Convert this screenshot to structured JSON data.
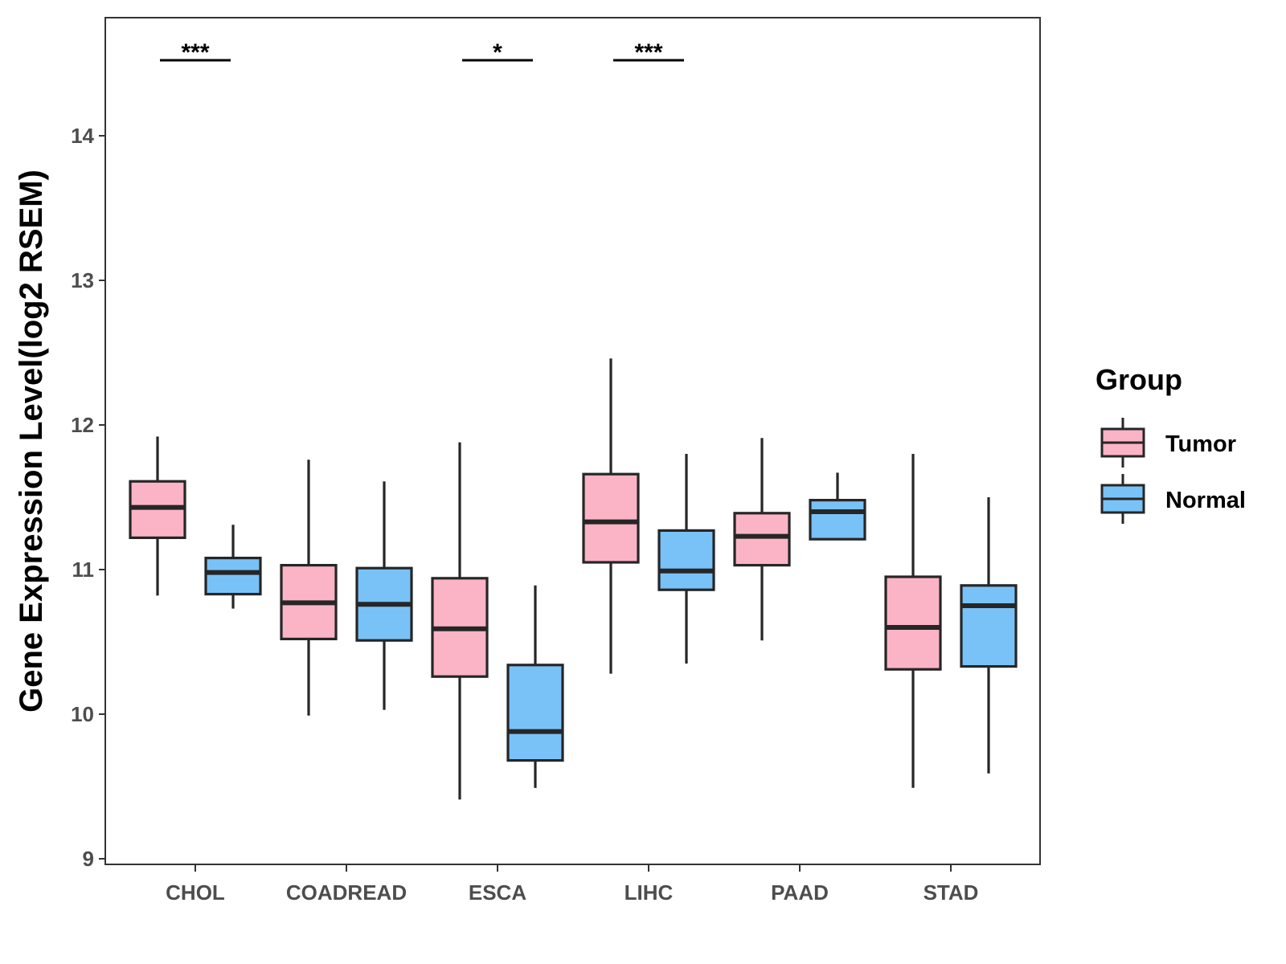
{
  "chart_data": {
    "type": "boxplot",
    "title": "",
    "xlabel": "",
    "ylabel": "Gene Expression Level(log2 RSEM)",
    "ylim": [
      8.95,
      14.8
    ],
    "yticks": [
      9,
      10,
      11,
      12,
      13,
      14
    ],
    "categories": [
      "CHOL",
      "COADREAD",
      "ESCA",
      "LIHC",
      "PAAD",
      "STAD"
    ],
    "legend": {
      "title": "Group",
      "position": "right",
      "entries": [
        {
          "name": "Tumor",
          "color": "#FBB4C6"
        },
        {
          "name": "Normal",
          "color": "#79C2F7"
        }
      ]
    },
    "series": [
      {
        "name": "Tumor",
        "color": "#FBB4C6",
        "boxes": [
          {
            "min": 10.82,
            "q1": 11.22,
            "median": 11.43,
            "q3": 11.61,
            "max": 11.92
          },
          {
            "min": 9.99,
            "q1": 10.52,
            "median": 10.77,
            "q3": 11.03,
            "max": 11.76
          },
          {
            "min": 9.41,
            "q1": 10.26,
            "median": 10.59,
            "q3": 10.94,
            "max": 11.88
          },
          {
            "min": 10.28,
            "q1": 11.05,
            "median": 11.33,
            "q3": 11.66,
            "max": 12.46
          },
          {
            "min": 10.51,
            "q1": 11.03,
            "median": 11.23,
            "q3": 11.39,
            "max": 11.91
          },
          {
            "min": 9.49,
            "q1": 10.31,
            "median": 10.6,
            "q3": 10.95,
            "max": 11.8
          }
        ]
      },
      {
        "name": "Normal",
        "color": "#79C2F7",
        "boxes": [
          {
            "min": 10.73,
            "q1": 10.83,
            "median": 10.98,
            "q3": 11.08,
            "max": 11.31
          },
          {
            "min": 10.03,
            "q1": 10.51,
            "median": 10.76,
            "q3": 11.01,
            "max": 11.61
          },
          {
            "min": 9.49,
            "q1": 9.68,
            "median": 9.88,
            "q3": 10.34,
            "max": 10.89
          },
          {
            "min": 10.35,
            "q1": 10.86,
            "median": 10.99,
            "q3": 11.27,
            "max": 11.8
          },
          {
            "min": 11.21,
            "q1": 11.21,
            "median": 11.4,
            "q3": 11.48,
            "max": 11.67
          },
          {
            "min": 9.59,
            "q1": 10.33,
            "median": 10.75,
            "q3": 10.89,
            "max": 11.5
          }
        ]
      }
    ],
    "significance": [
      {
        "category": "CHOL",
        "label": "***"
      },
      {
        "category": "ESCA",
        "label": "*"
      },
      {
        "category": "LIHC",
        "label": "***"
      }
    ]
  }
}
